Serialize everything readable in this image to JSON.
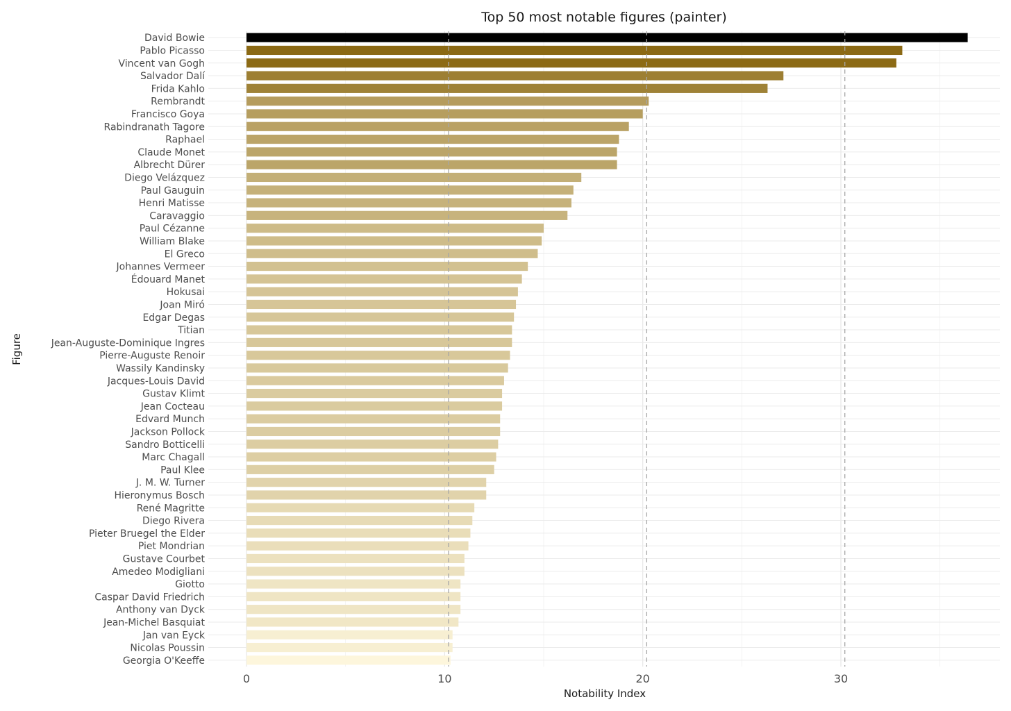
{
  "chart_data": {
    "type": "bar",
    "orientation": "horizontal",
    "title": "Top 50 most notable figures (painter)",
    "xlabel": "Notability Index",
    "ylabel": "Figure",
    "xlim": [
      -2.2,
      38.2
    ],
    "xticks": [
      0,
      10,
      20,
      30
    ],
    "reference_lines": [
      10.2,
      20.2,
      30.2
    ],
    "grid": true,
    "color_scale": {
      "low": "#fdf6dc",
      "high": "#8b6914",
      "top": "#000000"
    },
    "categories": [
      "David Bowie",
      "Pablo Picasso",
      "Vincent van Gogh",
      "Salvador Dalí",
      "Frida Kahlo",
      "Rembrandt",
      "Francisco Goya",
      "Rabindranath Tagore",
      "Raphael",
      "Claude Monet",
      "Albrecht Dürer",
      "Diego Velázquez",
      "Paul Gauguin",
      "Henri Matisse",
      "Caravaggio",
      "Paul Cézanne",
      "William Blake",
      "El Greco",
      "Johannes Vermeer",
      "Édouard Manet",
      "Hokusai",
      "Joan Miró",
      "Edgar Degas",
      "Titian",
      "Jean-Auguste-Dominique Ingres",
      "Pierre-Auguste Renoir",
      "Wassily Kandinsky",
      "Jacques-Louis David",
      "Gustav Klimt",
      "Jean Cocteau",
      "Edvard Munch",
      "Jackson Pollock",
      "Sandro Botticelli",
      "Marc Chagall",
      "Paul Klee",
      "J. M. W. Turner",
      "Hieronymus Bosch",
      "René Magritte",
      "Diego Rivera",
      "Pieter Bruegel the Elder",
      "Piet Mondrian",
      "Gustave Courbet",
      "Amedeo Modigliani",
      "Giotto",
      "Caspar David Friedrich",
      "Anthony van Dyck",
      "Jean-Michel Basquiat",
      "Jan van Eyck",
      "Nicolas Poussin",
      "Georgia O'Keeffe"
    ],
    "values": [
      36.4,
      33.1,
      32.8,
      27.1,
      26.3,
      20.3,
      20.0,
      19.3,
      18.8,
      18.7,
      18.7,
      16.9,
      16.5,
      16.4,
      16.2,
      15.0,
      14.9,
      14.7,
      14.2,
      13.9,
      13.7,
      13.6,
      13.5,
      13.4,
      13.4,
      13.3,
      13.2,
      13.0,
      12.9,
      12.9,
      12.8,
      12.8,
      12.7,
      12.6,
      12.5,
      12.1,
      12.1,
      11.5,
      11.4,
      11.3,
      11.2,
      11.0,
      11.0,
      10.8,
      10.8,
      10.8,
      10.7,
      10.4,
      10.4,
      10.3
    ]
  }
}
